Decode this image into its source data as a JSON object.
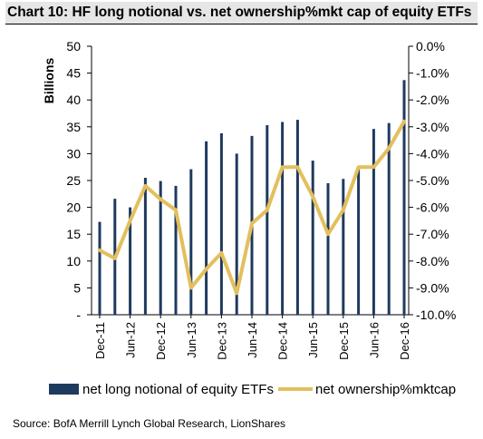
{
  "title": "Chart 10: HF long notional vs. net ownership%mkt cap of equity ETFs",
  "source": "Source: BofA Merrill Lynch Global Research, LionShares",
  "chart_data": {
    "type": "bar",
    "title": "Chart 10: HF long notional vs. net ownership%mkt cap of equity ETFs",
    "ylabel": "Billions",
    "ylim": [
      0,
      50
    ],
    "y_ticks": [
      "-",
      "5",
      "10",
      "15",
      "20",
      "25",
      "30",
      "35",
      "40",
      "45",
      "50"
    ],
    "y2lim": [
      -10.0,
      0.0
    ],
    "y2_ticks": [
      "-10.0%",
      "-9.0%",
      "-8.0%",
      "-7.0%",
      "-6.0%",
      "-5.0%",
      "-4.0%",
      "-3.0%",
      "-2.0%",
      "-1.0%",
      "0.0%"
    ],
    "x_ticks": [
      "Dec-11",
      "Jun-12",
      "Dec-12",
      "Jun-13",
      "Dec-13",
      "Jun-14",
      "Dec-14",
      "Jun-15",
      "Dec-15",
      "Jun-16",
      "Dec-16"
    ],
    "grid": false,
    "legend_position": "bottom",
    "series": [
      {
        "name": "net long notional of equity ETFs",
        "type": "bar",
        "axis": "left",
        "color": "#1f3a5f",
        "values": [
          17.3,
          21.6,
          20.0,
          25.5,
          24.9,
          24.0,
          27.1,
          32.3,
          33.8,
          30.0,
          33.3,
          35.3,
          35.9,
          36.3,
          28.7,
          24.5,
          25.3,
          27.4,
          34.6,
          35.7,
          43.7
        ]
      },
      {
        "name": "net ownership%mktcap",
        "type": "line",
        "axis": "right",
        "color": "#e3bf5d",
        "values": [
          -7.6,
          -7.9,
          -6.5,
          -5.2,
          -5.7,
          -6.1,
          -9.0,
          -8.3,
          -7.7,
          -9.2,
          -6.6,
          -6.1,
          -4.5,
          -4.5,
          -5.6,
          -7.0,
          -6.1,
          -4.5,
          -4.5,
          -3.8,
          -2.8
        ]
      }
    ]
  }
}
